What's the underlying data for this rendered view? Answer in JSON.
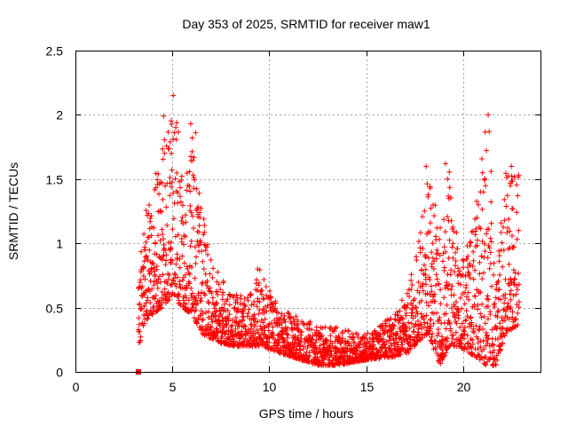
{
  "chart_data": {
    "type": "scatter",
    "title": "Day 353 of 2025, SRMTID for receiver maw1",
    "xlabel": "GPS time / hours",
    "ylabel": "SRMTID / TECUs",
    "xlim": [
      0,
      24
    ],
    "ylim": [
      0,
      2.5
    ],
    "xticks": [
      0,
      5,
      10,
      15,
      20
    ],
    "xtick_labels": [
      "0",
      "5",
      "10",
      "15",
      "20"
    ],
    "yticks": [
      0,
      0.5,
      1,
      1.5,
      2,
      2.5
    ],
    "ytick_labels": [
      "0",
      "0.5",
      "1",
      "1.5",
      "2",
      "2.5"
    ],
    "grid": true,
    "marker": "+",
    "color": "#ff0000",
    "start_marker": {
      "x": 3.25,
      "y": 0.0
    },
    "data_start_hour": 3.25,
    "data_end_hour": 22.9,
    "envelope": [
      {
        "x": 3.3,
        "lo": 0.2,
        "hi": 0.8
      },
      {
        "x": 3.6,
        "lo": 0.4,
        "hi": 1.25
      },
      {
        "x": 4.0,
        "lo": 0.45,
        "hi": 1.45
      },
      {
        "x": 4.5,
        "lo": 0.5,
        "hi": 1.8
      },
      {
        "x": 5.0,
        "lo": 0.6,
        "hi": 2.15
      },
      {
        "x": 5.5,
        "lo": 0.5,
        "hi": 1.7
      },
      {
        "x": 6.0,
        "lo": 0.45,
        "hi": 1.9
      },
      {
        "x": 6.5,
        "lo": 0.3,
        "hi": 1.3
      },
      {
        "x": 7.0,
        "lo": 0.25,
        "hi": 0.9
      },
      {
        "x": 8.0,
        "lo": 0.2,
        "hi": 0.6
      },
      {
        "x": 9.0,
        "lo": 0.2,
        "hi": 0.6
      },
      {
        "x": 9.5,
        "lo": 0.2,
        "hi": 0.8
      },
      {
        "x": 10.5,
        "lo": 0.15,
        "hi": 0.5
      },
      {
        "x": 11.5,
        "lo": 0.1,
        "hi": 0.45
      },
      {
        "x": 12.5,
        "lo": 0.05,
        "hi": 0.35
      },
      {
        "x": 13.5,
        "lo": 0.05,
        "hi": 0.35
      },
      {
        "x": 14.5,
        "lo": 0.08,
        "hi": 0.3
      },
      {
        "x": 15.5,
        "lo": 0.1,
        "hi": 0.35
      },
      {
        "x": 16.5,
        "lo": 0.12,
        "hi": 0.45
      },
      {
        "x": 17.2,
        "lo": 0.15,
        "hi": 0.7
      },
      {
        "x": 17.8,
        "lo": 0.25,
        "hi": 1.2
      },
      {
        "x": 18.2,
        "lo": 0.3,
        "hi": 1.6
      },
      {
        "x": 18.8,
        "lo": 0.05,
        "hi": 1.1
      },
      {
        "x": 19.3,
        "lo": 0.2,
        "hi": 1.6
      },
      {
        "x": 19.8,
        "lo": 0.2,
        "hi": 0.9
      },
      {
        "x": 20.3,
        "lo": 0.15,
        "hi": 1.0
      },
      {
        "x": 20.8,
        "lo": 0.1,
        "hi": 1.4
      },
      {
        "x": 21.2,
        "lo": 0.05,
        "hi": 2.0
      },
      {
        "x": 21.7,
        "lo": 0.05,
        "hi": 0.7
      },
      {
        "x": 22.2,
        "lo": 0.3,
        "hi": 1.6
      },
      {
        "x": 22.7,
        "lo": 0.35,
        "hi": 1.55
      }
    ],
    "peaks": [
      {
        "x": 4.55,
        "y": 1.99
      },
      {
        "x": 5.05,
        "y": 2.15
      },
      {
        "x": 5.1,
        "y": 1.86
      },
      {
        "x": 5.95,
        "y": 1.93
      },
      {
        "x": 6.2,
        "y": 1.86
      },
      {
        "x": 4.95,
        "y": 1.7
      },
      {
        "x": 9.4,
        "y": 0.8
      },
      {
        "x": 18.1,
        "y": 1.6
      },
      {
        "x": 18.3,
        "y": 1.44
      },
      {
        "x": 19.1,
        "y": 1.62
      },
      {
        "x": 19.2,
        "y": 1.5
      },
      {
        "x": 21.3,
        "y": 2.0
      },
      {
        "x": 21.35,
        "y": 1.87
      },
      {
        "x": 21.45,
        "y": 1.56
      },
      {
        "x": 22.5,
        "y": 1.6
      },
      {
        "x": 22.45,
        "y": 1.45
      },
      {
        "x": 20.9,
        "y": 1.4
      }
    ]
  }
}
